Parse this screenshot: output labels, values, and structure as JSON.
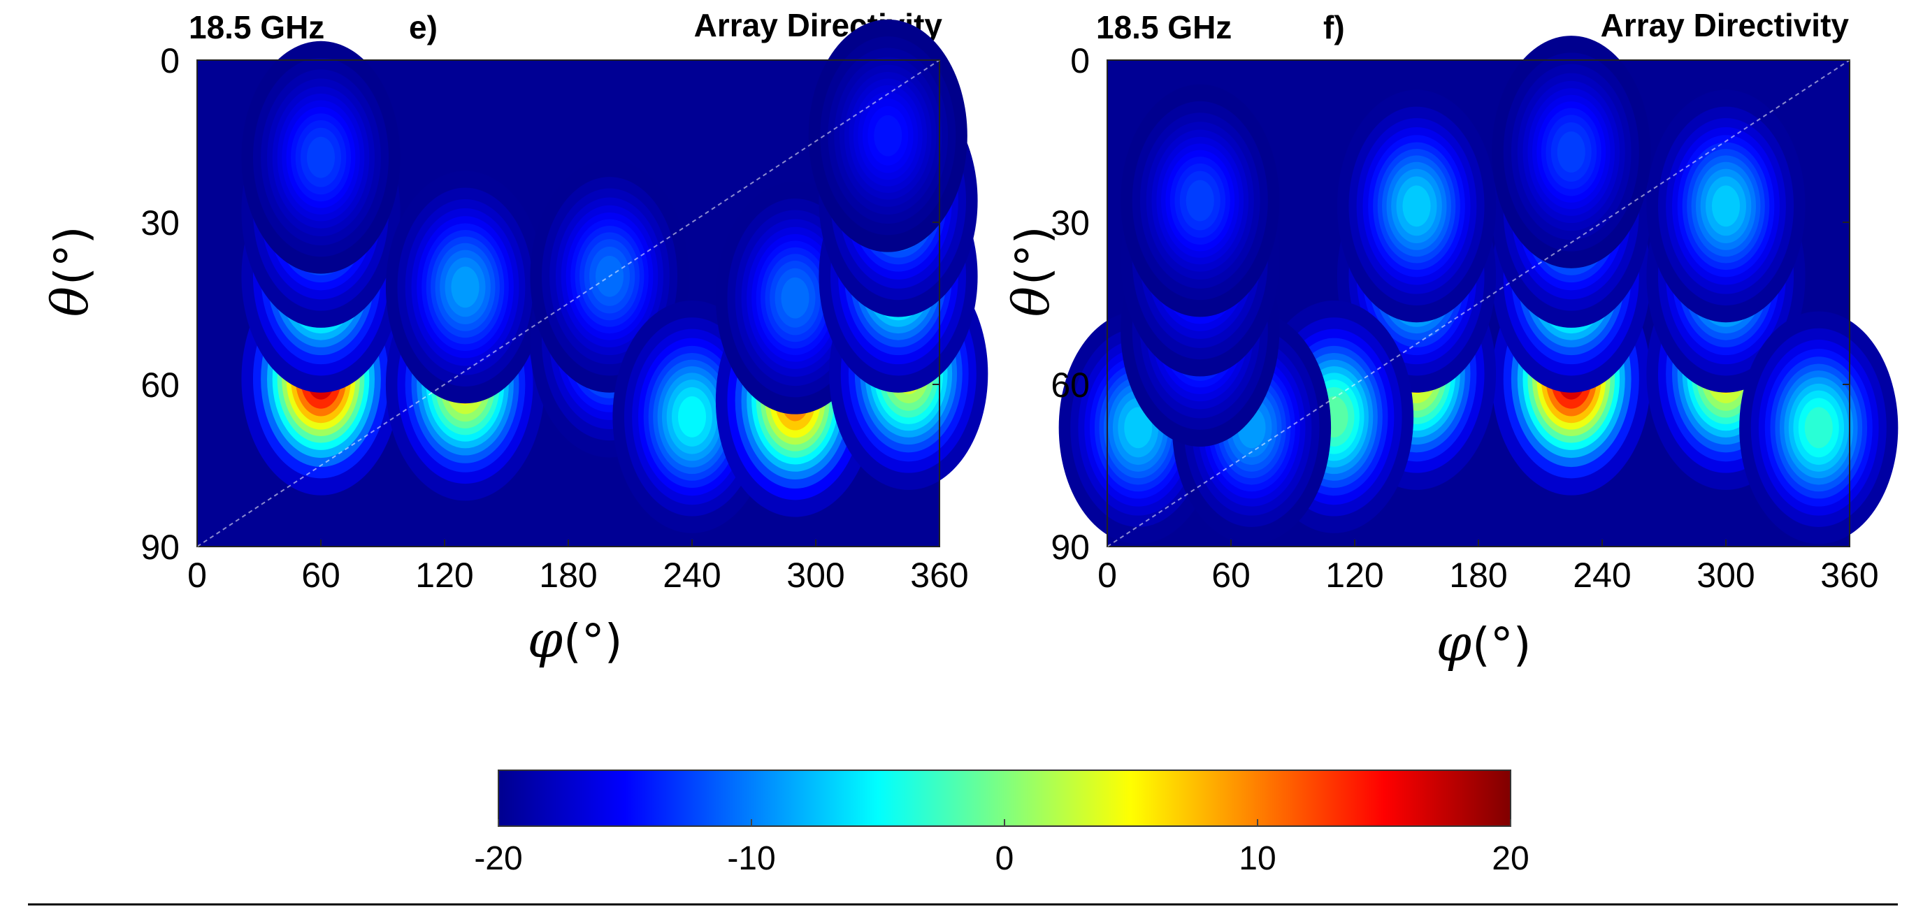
{
  "chart_data": [
    {
      "type": "heatmap",
      "panel_label": "e)",
      "frequency": "18.5 GHz",
      "title": "Array Directivity",
      "xlabel_symbol": "φ",
      "xlabel_unit": "(°)",
      "ylabel_symbol": "θ",
      "ylabel_unit": "(°)",
      "xlim": [
        0,
        360
      ],
      "ylim": [
        0,
        90
      ],
      "xticks": [
        0,
        60,
        120,
        180,
        240,
        300,
        360
      ],
      "yticks": [
        0,
        30,
        60,
        90
      ],
      "lobes": [
        {
          "phi": 60,
          "theta": 59,
          "peak": 19.5
        },
        {
          "phi": 60,
          "theta": 40,
          "peak": 6
        },
        {
          "phi": 60,
          "theta": 28,
          "peak": -3
        },
        {
          "phi": 60,
          "theta": 18,
          "peak": -12
        },
        {
          "phi": 130,
          "theta": 60,
          "peak": 7
        },
        {
          "phi": 130,
          "theta": 42,
          "peak": -8
        },
        {
          "phi": 200,
          "theta": 52,
          "peak": -6
        },
        {
          "phi": 200,
          "theta": 40,
          "peak": -10
        },
        {
          "phi": 240,
          "theta": 66,
          "peak": -4
        },
        {
          "phi": 290,
          "theta": 63,
          "peak": 12
        },
        {
          "phi": 290,
          "theta": 44,
          "peak": -10
        },
        {
          "phi": 345,
          "theta": 58,
          "peak": 5
        },
        {
          "phi": 340,
          "theta": 40,
          "peak": 0
        },
        {
          "phi": 340,
          "theta": 26,
          "peak": -5
        },
        {
          "phi": 335,
          "theta": 14,
          "peak": -14
        }
      ]
    },
    {
      "type": "heatmap",
      "panel_label": "f)",
      "frequency": "18.5 GHz",
      "title": "Array Directivity",
      "xlabel_symbol": "φ",
      "xlabel_unit": "(°)",
      "ylabel_symbol": "θ",
      "ylabel_unit": "(°)",
      "xlim": [
        0,
        360
      ],
      "ylim": [
        0,
        90
      ],
      "xticks": [
        0,
        60,
        120,
        180,
        240,
        300,
        360
      ],
      "yticks": [
        0,
        30,
        60,
        90
      ],
      "lobes": [
        {
          "phi": 225,
          "theta": 59,
          "peak": 19.5
        },
        {
          "phi": 225,
          "theta": 40,
          "peak": 6
        },
        {
          "phi": 225,
          "theta": 28,
          "peak": -3
        },
        {
          "phi": 225,
          "theta": 17,
          "peak": -12
        },
        {
          "phi": 150,
          "theta": 58,
          "peak": 7
        },
        {
          "phi": 150,
          "theta": 40,
          "peak": -2
        },
        {
          "phi": 150,
          "theta": 27,
          "peak": -6
        },
        {
          "phi": 300,
          "theta": 58,
          "peak": 7
        },
        {
          "phi": 300,
          "theta": 40,
          "peak": -2
        },
        {
          "phi": 300,
          "theta": 27,
          "peak": -6
        },
        {
          "phi": 110,
          "theta": 66,
          "peak": 0
        },
        {
          "phi": 345,
          "theta": 68,
          "peak": -2
        },
        {
          "phi": 15,
          "theta": 68,
          "peak": -6
        },
        {
          "phi": 70,
          "theta": 68,
          "peak": -8
        },
        {
          "phi": 45,
          "theta": 50,
          "peak": -10
        },
        {
          "phi": 45,
          "theta": 37,
          "peak": -9
        },
        {
          "phi": 45,
          "theta": 26,
          "peak": -12
        }
      ]
    }
  ],
  "colorbar": {
    "min": -20,
    "max": 20,
    "ticks": [
      -20,
      -10,
      0,
      10,
      20
    ],
    "colormap": "jet"
  }
}
